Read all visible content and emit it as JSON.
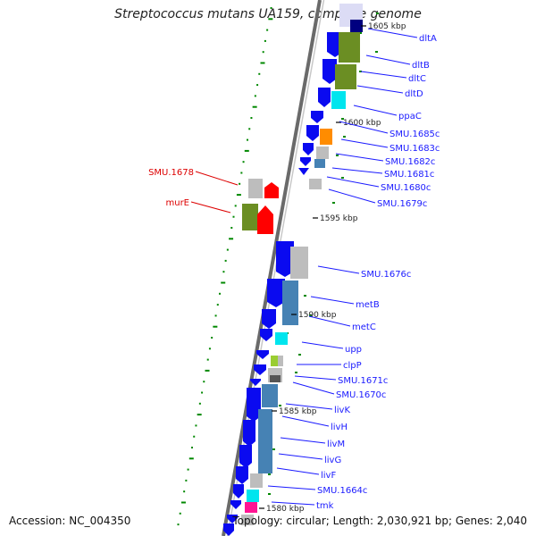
{
  "title": "Streptococcus mutans UA159, complete genome",
  "footer": {
    "accession": "Accession: NC_004350",
    "topology": "Topology: circular; Length: 2,030,921 bp; Genes: 2,040"
  },
  "colors": {
    "label_blue": "#1a1aff",
    "label_red": "#dd0000",
    "backbone": "#777777",
    "gene_blue": "#0a0af0",
    "gene_steel": "#4682b4",
    "gene_olive": "#6b8e23",
    "gene_grey": "#bdbdbd",
    "gene_cyan": "#00e5ee",
    "gene_orange": "#ff8c00",
    "gene_red": "#ff0000",
    "gene_lime": "#9acd32",
    "gene_magenta": "#ff1493",
    "gene_navy": "#000080",
    "tick_green": "#008800"
  },
  "scale_labels": [
    "1605 kbp",
    "1600 kbp",
    "1595 kbp",
    "1590 kbp",
    "1585 kbp",
    "1580 kbp"
  ],
  "genes_reverse": [
    "dltA",
    "dltB",
    "dltC",
    "dltD",
    "ppaC",
    "SMU.1685c",
    "SMU.1683c",
    "SMU.1682c",
    "SMU.1681c",
    "SMU.1680c",
    "SMU.1679c",
    "SMU.1676c",
    "metB",
    "metC",
    "upp",
    "clpP",
    "SMU.1671c",
    "SMU.1670c",
    "livK",
    "livH",
    "livM",
    "livG",
    "livF",
    "SMU.1664c",
    "tmk"
  ],
  "genes_forward": [
    "SMU.1678",
    "murE"
  ]
}
